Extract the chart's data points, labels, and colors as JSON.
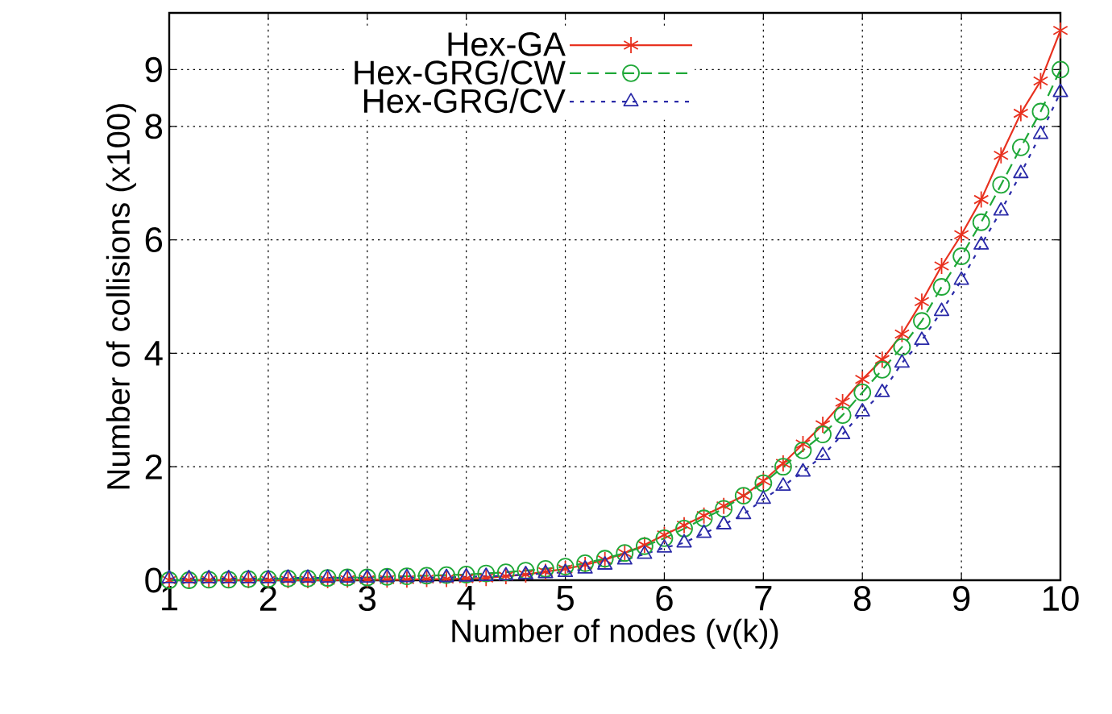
{
  "chart_data": {
    "type": "line",
    "xlabel": "Number of nodes (v(k))",
    "ylabel": "Number of collisions (x100)",
    "x": [
      1,
      1.2,
      1.4,
      1.6,
      1.8,
      2,
      2.2,
      2.4,
      2.6,
      2.8,
      3,
      3.2,
      3.4,
      3.6,
      3.8,
      4,
      4.2,
      4.4,
      4.6,
      4.8,
      5,
      5.2,
      5.4,
      5.6,
      5.8,
      6,
      6.2,
      6.4,
      6.6,
      6.8,
      7,
      7.2,
      7.4,
      7.6,
      7.8,
      8,
      8.2,
      8.4,
      8.6,
      8.8,
      9,
      9.2,
      9.4,
      9.6,
      9.8,
      10
    ],
    "series": [
      {
        "name": "Hex-GA",
        "color": "#e8311f",
        "marker": "cross",
        "line_style": "solid",
        "values": [
          0,
          0,
          0,
          0,
          0,
          0,
          0,
          0,
          0,
          0.01,
          0.01,
          0.01,
          0.01,
          0.02,
          0.02,
          0.03,
          0.04,
          0.07,
          0.1,
          0.15,
          0.2,
          0.27,
          0.36,
          0.48,
          0.62,
          0.8,
          0.97,
          1.14,
          1.31,
          1.49,
          1.75,
          2.06,
          2.4,
          2.74,
          3.14,
          3.54,
          3.89,
          4.34,
          4.91,
          5.54,
          6.09,
          6.71,
          7.49,
          8.23,
          8.8,
          9.69
        ]
      },
      {
        "name": "Hex-GRG/CW",
        "color": "#1fa838",
        "marker": "circle",
        "line_style": "dashed",
        "values": [
          0,
          0,
          0.01,
          0.01,
          0.02,
          0.02,
          0.03,
          0.03,
          0.04,
          0.05,
          0.05,
          0.06,
          0.07,
          0.08,
          0.09,
          0.1,
          0.12,
          0.14,
          0.17,
          0.2,
          0.24,
          0.3,
          0.38,
          0.48,
          0.6,
          0.74,
          0.91,
          1.09,
          1.26,
          1.49,
          1.71,
          2.0,
          2.29,
          2.57,
          2.91,
          3.31,
          3.71,
          4.11,
          4.57,
          5.17,
          5.71,
          6.31,
          6.97,
          7.63,
          8.26,
          9.0
        ]
      },
      {
        "name": "Hex-GRG/CV",
        "color": "#2a2aa8",
        "marker": "triangle",
        "line_style": "dotted",
        "values": [
          0.03,
          0.03,
          0.03,
          0.03,
          0.03,
          0.03,
          0.04,
          0.04,
          0.04,
          0.04,
          0.04,
          0.05,
          0.05,
          0.05,
          0.05,
          0.06,
          0.07,
          0.08,
          0.1,
          0.12,
          0.14,
          0.2,
          0.27,
          0.36,
          0.46,
          0.57,
          0.66,
          0.83,
          0.98,
          1.16,
          1.43,
          1.66,
          1.91,
          2.2,
          2.57,
          2.97,
          3.31,
          3.83,
          4.23,
          4.74,
          5.29,
          5.91,
          6.51,
          7.17,
          7.86,
          8.6
        ]
      }
    ],
    "xlim": [
      1,
      10
    ],
    "xticks": [
      1,
      2,
      3,
      4,
      5,
      6,
      7,
      8,
      9,
      10
    ],
    "ylim": [
      0,
      10
    ],
    "yticks": [
      0,
      2,
      4,
      6,
      8,
      9
    ],
    "grid": true,
    "legend": "top left"
  }
}
